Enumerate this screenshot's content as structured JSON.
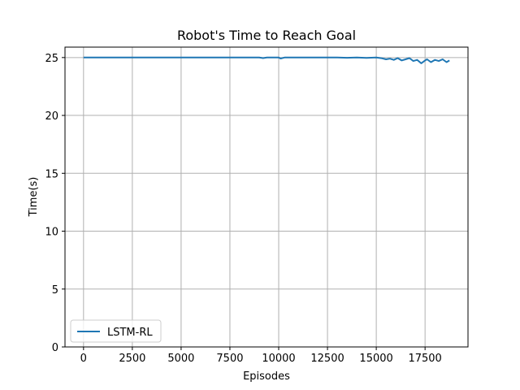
{
  "chart_data": {
    "type": "line",
    "title": "Robot's Time to Reach Goal",
    "xlabel": "Episodes",
    "ylabel": "Time(s)",
    "xlim": [
      -950,
      19700
    ],
    "ylim": [
      0,
      25.9
    ],
    "xticks": [
      0,
      2500,
      5000,
      7500,
      10000,
      12500,
      15000,
      17500
    ],
    "yticks": [
      0,
      5,
      10,
      15,
      20,
      25
    ],
    "grid": true,
    "legend_position": "lower-left",
    "series": [
      {
        "name": "LSTM-RL",
        "color": "#1f77b4",
        "x": [
          0,
          1000,
          2000,
          3000,
          4000,
          5000,
          6000,
          7000,
          8000,
          9000,
          9200,
          9400,
          9600,
          10000,
          10100,
          10300,
          11000,
          12000,
          13000,
          13500,
          14000,
          14500,
          15000,
          15300,
          15500,
          15700,
          15900,
          16100,
          16300,
          16500,
          16700,
          16900,
          17100,
          17300,
          17500,
          17600,
          17800,
          18000,
          18200,
          18400,
          18600,
          18750
        ],
        "values": [
          25.0,
          25.0,
          25.0,
          25.0,
          25.0,
          25.0,
          25.0,
          25.0,
          25.0,
          25.0,
          24.95,
          25.0,
          25.0,
          25.0,
          24.92,
          25.0,
          25.0,
          25.0,
          25.0,
          24.98,
          25.0,
          24.97,
          25.0,
          24.93,
          24.85,
          24.9,
          24.8,
          24.95,
          24.75,
          24.85,
          24.95,
          24.7,
          24.8,
          24.5,
          24.75,
          24.85,
          24.6,
          24.8,
          24.7,
          24.85,
          24.6,
          24.75
        ]
      }
    ]
  }
}
